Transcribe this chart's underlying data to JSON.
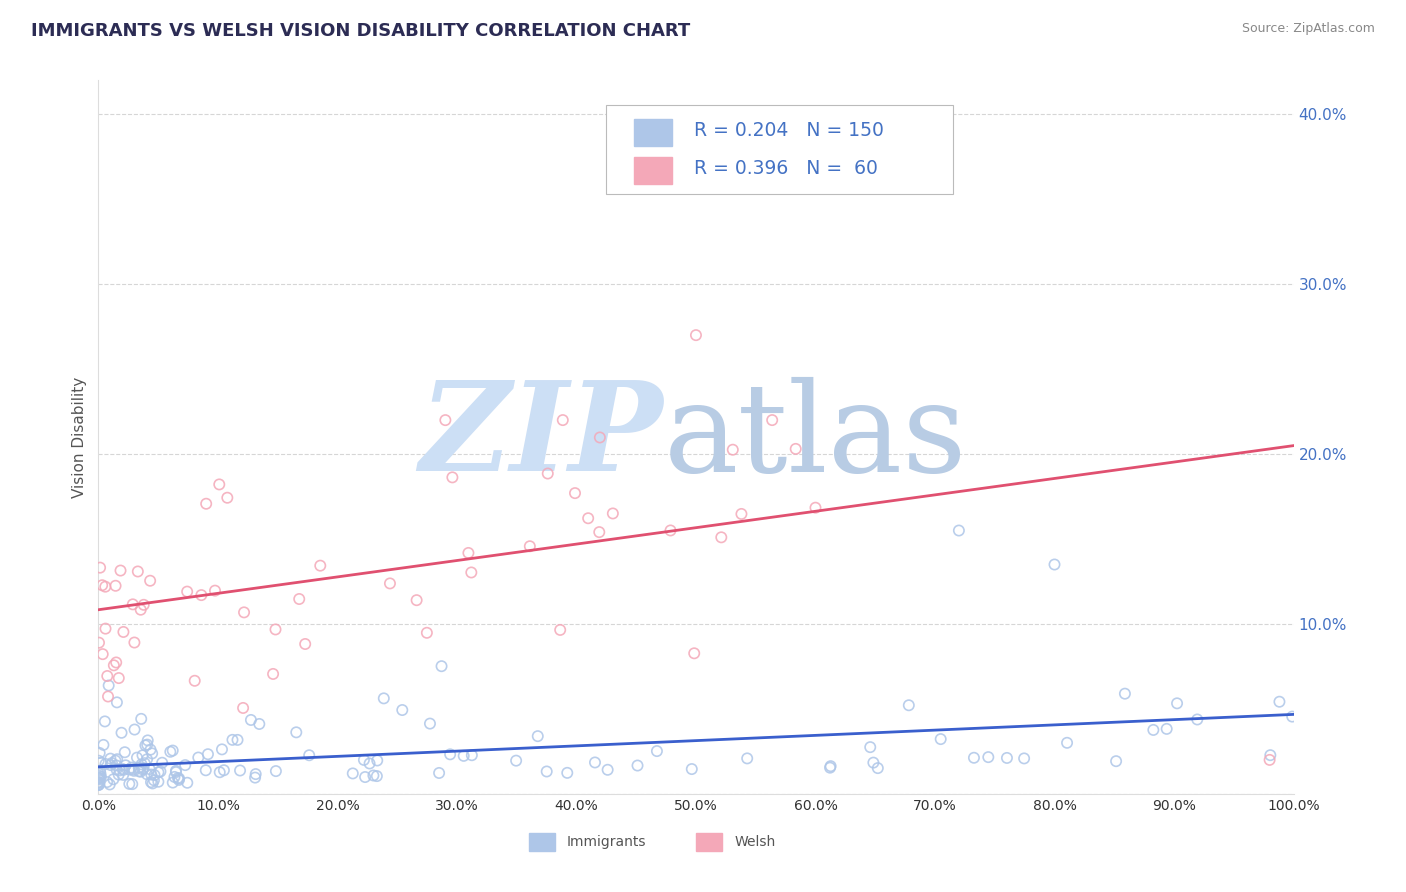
{
  "title": "IMMIGRANTS VS WELSH VISION DISABILITY CORRELATION CHART",
  "source": "Source: ZipAtlas.com",
  "ylabel": "Vision Disability",
  "xlim": [
    0.0,
    1.0
  ],
  "ylim": [
    0.0,
    0.42
  ],
  "xticks": [
    0.0,
    0.1,
    0.2,
    0.3,
    0.4,
    0.5,
    0.6,
    0.7,
    0.8,
    0.9,
    1.0
  ],
  "xticklabels": [
    "0.0%",
    "10.0%",
    "20.0%",
    "30.0%",
    "40.0%",
    "50.0%",
    "60.0%",
    "70.0%",
    "80.0%",
    "90.0%",
    "100.0%"
  ],
  "yticks": [
    0.0,
    0.1,
    0.2,
    0.3,
    0.4
  ],
  "yticklabels": [
    "",
    "10.0%",
    "20.0%",
    "30.0%",
    "40.0%"
  ],
  "immigrants_color": "#aec6e8",
  "welsh_color": "#f4a8b8",
  "immigrants_line_color": "#3a5fcd",
  "welsh_line_color": "#e05070",
  "R_immigrants": 0.204,
  "N_immigrants": 150,
  "R_welsh": 0.396,
  "N_welsh": 60,
  "legend_label_immigrants": "Immigrants",
  "legend_label_welsh": "Welsh",
  "watermark_zip_color": "#ccdff5",
  "watermark_atlas_color": "#b8cce4",
  "title_color": "#2c2c54",
  "title_fontsize": 13,
  "axis_label_color": "#555555",
  "tick_color": "#4472c4",
  "grid_color": "#cccccc",
  "legend_text_color": "#4472c4"
}
